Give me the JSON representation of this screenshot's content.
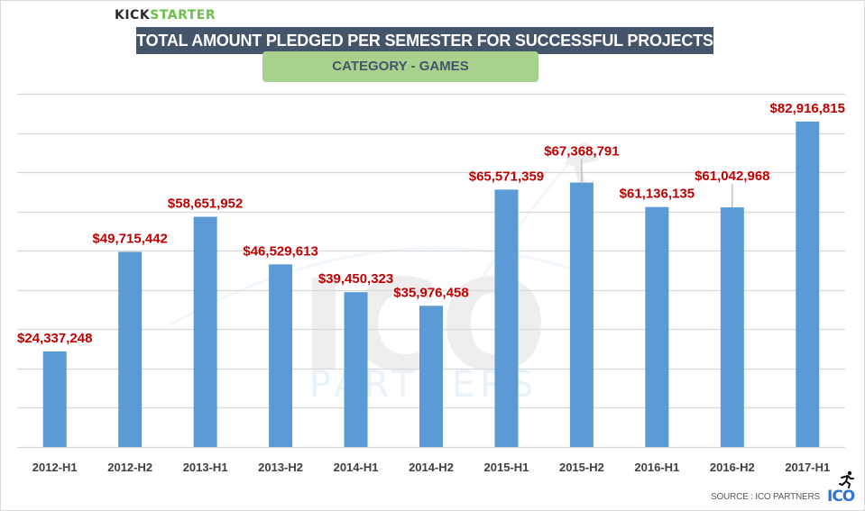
{
  "brand": {
    "part1": "KICK",
    "part2": "STARTER"
  },
  "header": {
    "title": "TOTAL AMOUNT PLEDGED PER SEMESTER FOR SUCCESSFUL PROJECTS",
    "subtitle": "CATEGORY - GAMES"
  },
  "footer": {
    "source": "SOURCE : ICO PARTNERS",
    "logo_text": "ICO",
    "logo_icon": "runner-icon"
  },
  "watermark": {
    "main": "ICO",
    "sub": "PARTNERS"
  },
  "colors": {
    "bar": "#5b9bd5",
    "label": "#c00000",
    "grid": "#d9d9d9",
    "title_bg": "#44546a",
    "subtitle_bg": "#a9d18e",
    "brand_green": "#6cc04a"
  },
  "chart_data": {
    "type": "bar",
    "title": "TOTAL AMOUNT PLEDGED PER SEMESTER FOR SUCCESSFUL PROJECTS",
    "subtitle": "CATEGORY - GAMES",
    "xlabel": "",
    "ylabel": "",
    "ylim": [
      0,
      90000000
    ],
    "ygrid_step": 10000000,
    "grid": true,
    "y_tick_labels_visible": false,
    "legend": "none",
    "categories": [
      "2012-H1",
      "2012-H2",
      "2013-H1",
      "2013-H2",
      "2014-H1",
      "2014-H2",
      "2015-H1",
      "2015-H2",
      "2016-H1",
      "2016-H2",
      "2017-H1"
    ],
    "values": [
      24337248,
      49715442,
      58651952,
      46529613,
      39450323,
      35976458,
      65571359,
      67368791,
      61136135,
      61042968,
      82916815
    ],
    "data_labels": [
      "$24,337,248",
      "$49,715,442",
      "$58,651,952",
      "$46,529,613",
      "$39,450,323",
      "$35,976,458",
      "$65,571,359",
      "$67,368,791",
      "$61,136,135",
      "$61,042,968",
      "$82,916,815"
    ],
    "label_leader_lines": [
      false,
      false,
      false,
      false,
      false,
      false,
      false,
      true,
      false,
      true,
      false
    ],
    "label_offsets_up": [
      0,
      0,
      0,
      0,
      0,
      0,
      0,
      1,
      0,
      1,
      0
    ]
  }
}
